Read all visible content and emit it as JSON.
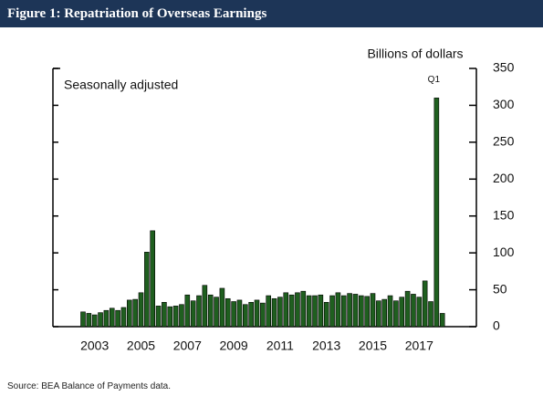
{
  "header": {
    "title": "Figure 1: Repatriation of Overseas Earnings"
  },
  "chart_data": {
    "type": "bar",
    "unit_label": "Billions of dollars",
    "annotation": "Seasonally adjusted",
    "spike_label": "Q1",
    "categories": [
      null,
      null,
      "2003",
      null,
      null,
      null,
      null,
      null,
      null,
      null,
      "2005",
      null,
      null,
      null,
      null,
      null,
      null,
      null,
      "2007",
      null,
      null,
      null,
      null,
      null,
      null,
      null,
      "2009",
      null,
      null,
      null,
      null,
      null,
      null,
      null,
      "2011",
      null,
      null,
      null,
      null,
      null,
      null,
      null,
      "2013",
      null,
      null,
      null,
      null,
      null,
      null,
      null,
      "2015",
      null,
      null,
      null,
      null,
      null,
      null,
      null,
      "2017",
      null,
      null,
      null,
      null,
      null
    ],
    "values": [
      20,
      18,
      16,
      19,
      22,
      25,
      22,
      26,
      36,
      37,
      46,
      101,
      130,
      28,
      33,
      27,
      28,
      30,
      43,
      35,
      42,
      56,
      43,
      40,
      52,
      38,
      34,
      36,
      30,
      33,
      36,
      32,
      42,
      38,
      40,
      46,
      43,
      46,
      48,
      42,
      42,
      43,
      33,
      42,
      46,
      42,
      45,
      44,
      42,
      41,
      45,
      35,
      37,
      42,
      35,
      40,
      48,
      44,
      40,
      62,
      34,
      310,
      18,
      null
    ],
    "color": "#1f5f1f",
    "ylim": [
      0,
      350
    ],
    "yticks": [
      0,
      50,
      100,
      150,
      200,
      250,
      300,
      350
    ]
  },
  "footer": {
    "source": "Source: BEA Balance of Payments data."
  }
}
